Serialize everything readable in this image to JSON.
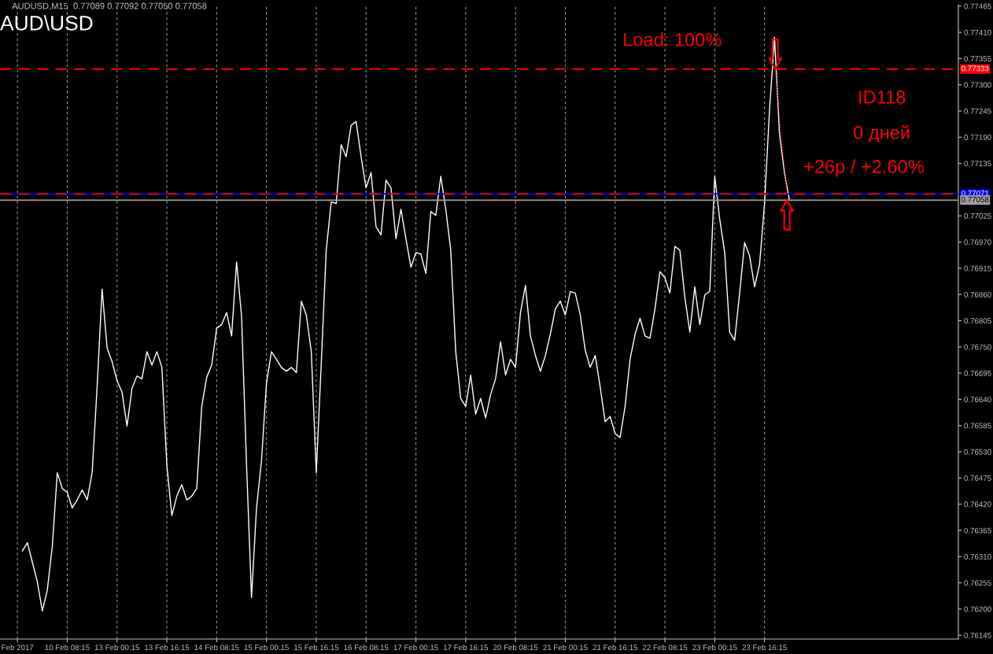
{
  "chart_data": {
    "type": "line",
    "title": "AUD\\USD",
    "annotations": [
      "AUDUSD,M15  0.77089 0.77092 0.77050 0.77058",
      "Load: 100%",
      "ID118",
      "0 дней",
      "+26p / +2.60%"
    ],
    "categories": [
      "Feb 2017",
      null,
      null,
      null,
      null,
      null,
      null,
      null,
      null,
      null,
      "10 Feb 08:15",
      null,
      null,
      null,
      null,
      null,
      null,
      null,
      null,
      null,
      "13 Feb 00:15",
      null,
      null,
      null,
      null,
      null,
      null,
      null,
      null,
      null,
      "13 Feb 16:15",
      null,
      null,
      null,
      null,
      null,
      null,
      null,
      null,
      null,
      "14 Feb 08:15",
      null,
      null,
      null,
      null,
      null,
      null,
      null,
      null,
      null,
      "15 Feb 00:15",
      null,
      null,
      null,
      null,
      null,
      null,
      null,
      null,
      null,
      "15 Feb 16:15",
      null,
      null,
      null,
      null,
      null,
      null,
      null,
      null,
      null,
      "16 Feb 08:15",
      null,
      null,
      null,
      null,
      null,
      null,
      null,
      null,
      null,
      "17 Feb 00:15",
      null,
      null,
      null,
      null,
      null,
      null,
      null,
      null,
      null,
      "17 Feb 16:15",
      null,
      null,
      null,
      null,
      null,
      null,
      null,
      null,
      null,
      "20 Feb 08:15",
      null,
      null,
      null,
      null,
      null,
      null,
      null,
      null,
      null,
      "21 Feb 00:15",
      null,
      null,
      null,
      null,
      null,
      null,
      null,
      null,
      null,
      "21 Feb 16:15",
      null,
      null,
      null,
      null,
      null,
      null,
      null,
      null,
      null,
      "22 Feb 08:15",
      null,
      null,
      null,
      null,
      null,
      null,
      null,
      null,
      null,
      "23 Feb 00:15",
      null,
      null,
      null,
      null,
      null,
      null,
      null,
      null,
      null,
      "23 Feb 16:15",
      null,
      null,
      null,
      null,
      null
    ],
    "series": [
      {
        "color": "#ffffff",
        "values": [
          null,
          0.76322,
          0.76339,
          0.76298,
          0.76257,
          0.76196,
          0.7624,
          0.76331,
          0.76486,
          0.76453,
          0.76445,
          0.76412,
          0.76429,
          0.7645,
          0.76429,
          0.76486,
          0.76666,
          0.76871,
          0.76748,
          0.76719,
          0.76679,
          0.76655,
          0.76584,
          0.76663,
          0.76689,
          0.76683,
          0.7674,
          0.76712,
          0.7674,
          0.76707,
          0.76502,
          0.76396,
          0.76437,
          0.76461,
          0.76429,
          0.76437,
          0.76453,
          0.76625,
          0.76686,
          0.76712,
          0.76789,
          0.76797,
          0.76822,
          0.76773,
          0.76928,
          0.76814,
          0.76502,
          0.76224,
          0.76412,
          0.76511,
          0.76674,
          0.7674,
          0.76724,
          0.76707,
          0.76699,
          0.76707,
          0.76696,
          0.76846,
          0.76817,
          0.7674,
          0.76486,
          0.76715,
          0.76953,
          0.77054,
          0.77051,
          0.77174,
          0.77149,
          0.77215,
          0.77223,
          0.77149,
          0.77084,
          0.77116,
          0.77002,
          0.76985,
          0.771,
          0.77084,
          0.76977,
          0.77039,
          0.76977,
          0.76917,
          0.76948,
          0.76945,
          0.76904,
          0.77034,
          0.77026,
          0.77108,
          0.77039,
          0.76953,
          0.7674,
          0.76642,
          0.76625,
          0.76691,
          0.76609,
          0.76642,
          0.76601,
          0.7665,
          0.76683,
          0.76761,
          0.76691,
          0.76724,
          0.76707,
          0.76822,
          0.76879,
          0.76773,
          0.76732,
          0.76699,
          0.76732,
          0.76777,
          0.7683,
          0.76846,
          0.76817,
          0.76866,
          0.76863,
          0.76817,
          0.76743,
          0.76707,
          0.76732,
          0.76666,
          0.76593,
          0.76604,
          0.76568,
          0.7656,
          0.76625,
          0.76724,
          0.76776,
          0.7681,
          0.76773,
          0.76768,
          0.7683,
          0.76908,
          0.76895,
          0.76863,
          0.76961,
          0.76953,
          0.76854,
          0.76781,
          0.76876,
          0.76797,
          0.76859,
          0.76867,
          0.77108,
          0.77018,
          0.76948,
          0.76781,
          0.76764,
          0.76863,
          0.76969,
          0.76941,
          0.76876,
          0.76923,
          0.77051,
          0.77247,
          0.774,
          0.77198,
          0.77115,
          0.77058
        ]
      }
    ],
    "ylim": [
      0.76137,
      0.77468
    ],
    "yticks": [
      0.76145,
      {
        "value": 0.762,
        "label": "0.76200"
      },
      0.76255,
      {
        "value": 0.7631,
        "label": "0.76310"
      },
      0.76365,
      {
        "value": 0.7642,
        "label": "0.76420"
      },
      0.76475,
      {
        "value": 0.7653,
        "label": "0.76530"
      },
      0.76585,
      {
        "value": 0.7664,
        "label": "0.76640"
      },
      0.76695,
      {
        "value": 0.7675,
        "label": "0.76750"
      },
      0.76805,
      {
        "value": 0.7686,
        "label": "0.76860"
      },
      0.76915,
      {
        "value": 0.7697,
        "label": "0.76970"
      },
      0.77025,
      0.77135,
      {
        "value": 0.7719,
        "label": "0.77190"
      },
      0.77245,
      {
        "value": 0.773,
        "label": "0.77300"
      },
      0.77355,
      {
        "value": 0.7741,
        "label": "0.77410"
      },
      0.77465
    ],
    "ref_lines": [
      {
        "axis": "y",
        "value": 0.77333,
        "label": "0.77333",
        "color": "#ff0000",
        "line_style": "dashed"
      },
      {
        "axis": "y",
        "value": 0.77071,
        "label": "0.77071",
        "color": "#0000ff",
        "line_style": "solid"
      },
      {
        "axis": "y",
        "value": 0.77071,
        "color": "#ff0000",
        "line_style": "dashed"
      },
      {
        "axis": "y",
        "value": 0.77058,
        "label": "0.77058",
        "color": "#a0a0a0",
        "line_style": "solid"
      }
    ],
    "grid": "x",
    "marker": "none",
    "line_style": "solid",
    "legend": false
  }
}
